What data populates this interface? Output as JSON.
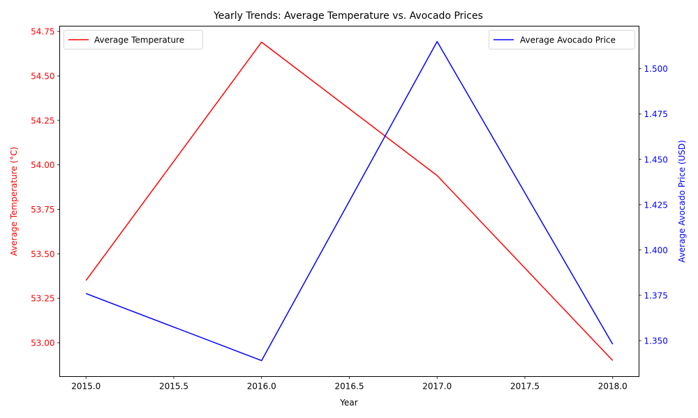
{
  "chart_data": {
    "type": "line",
    "title": "Yearly Trends: Average Temperature vs. Avocado Prices",
    "xlabel": "Year",
    "x": [
      2015,
      2016,
      2017,
      2018
    ],
    "xlim": [
      2014.85,
      2018.15
    ],
    "xticks": [
      2015.0,
      2015.5,
      2016.0,
      2016.5,
      2017.0,
      2017.5,
      2018.0
    ],
    "xtick_labels": [
      "2015.0",
      "2015.5",
      "2016.0",
      "2016.5",
      "2017.0",
      "2017.5",
      "2018.0"
    ],
    "grid": false,
    "axes": {
      "left": {
        "label": "Average Temperature (°C)",
        "color": "#ff0000",
        "ylim": [
          52.81,
          54.78
        ],
        "ticks": [
          53.0,
          53.25,
          53.5,
          53.75,
          54.0,
          54.25,
          54.5,
          54.75
        ],
        "tick_labels": [
          "53.00",
          "53.25",
          "53.50",
          "53.75",
          "54.00",
          "54.25",
          "54.50",
          "54.75"
        ],
        "series": {
          "name": "Average Temperature",
          "color": "#ff0000",
          "values": [
            53.35,
            54.69,
            53.94,
            52.9
          ]
        },
        "legend": "upper left"
      },
      "right": {
        "label": "Average Avocado Price (USD)",
        "color": "#0000ff",
        "ylim": [
          1.3302,
          1.5235
        ],
        "ticks": [
          1.35,
          1.375,
          1.4,
          1.425,
          1.45,
          1.475,
          1.5
        ],
        "tick_labels": [
          "1.350",
          "1.375",
          "1.400",
          "1.425",
          "1.450",
          "1.475",
          "1.500"
        ],
        "series": {
          "name": "Average Avocado Price",
          "color": "#0000ff",
          "values": [
            1.376,
            1.339,
            1.515,
            1.348
          ]
        },
        "legend": "upper right"
      }
    }
  }
}
